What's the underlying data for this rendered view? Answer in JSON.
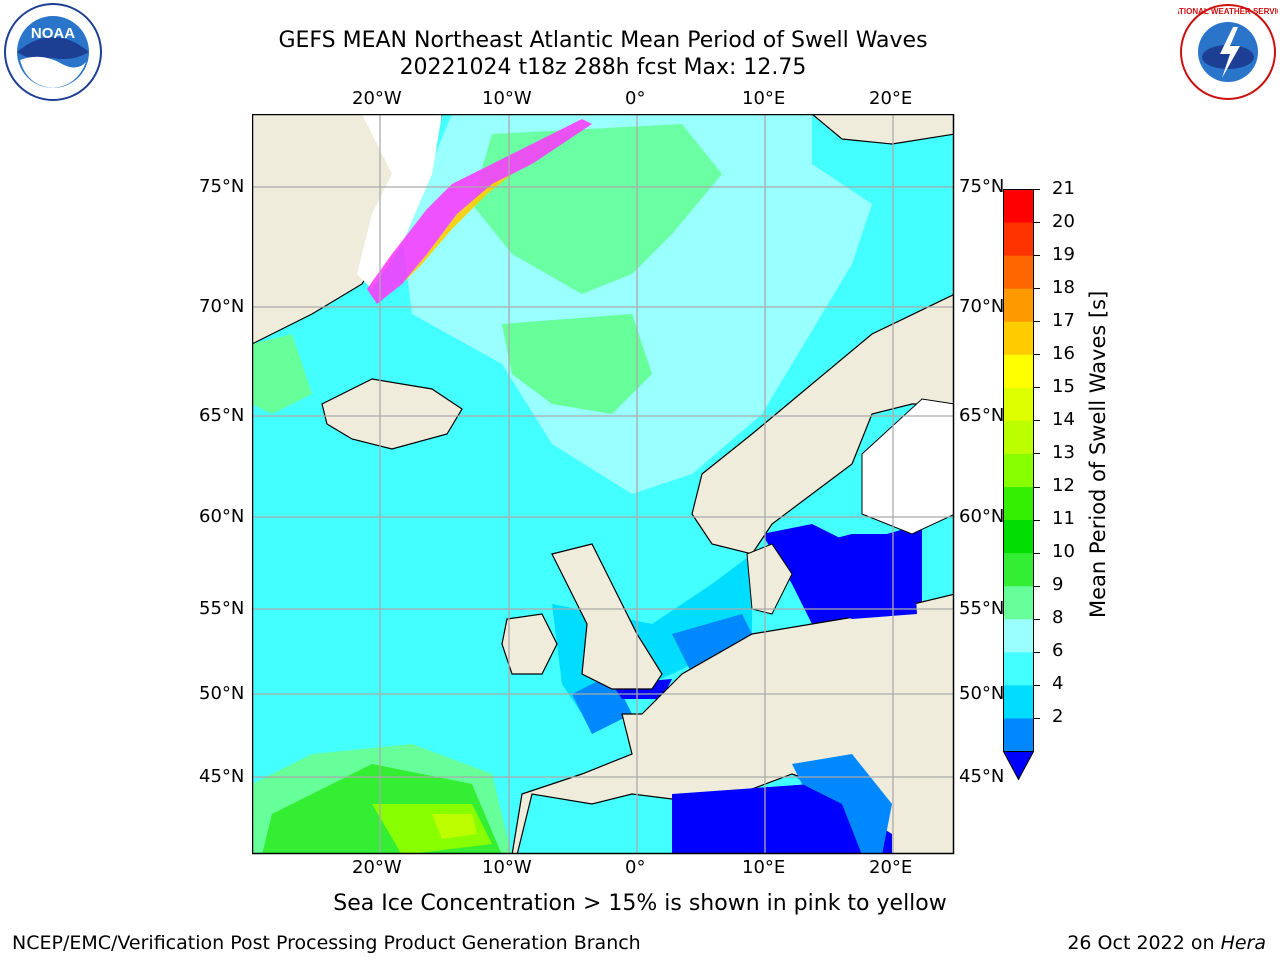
{
  "header": {
    "title_line1": "GEFS MEAN Northeast Atlantic Mean Period of Swell Waves",
    "title_line2": "20221024 t18z 288h fcst   Max: 12.75"
  },
  "logos": {
    "left": "NOAA",
    "right": "NATIONAL WEATHER SERVICE"
  },
  "map": {
    "lon_labels": [
      "20°W",
      "10°W",
      "0°",
      "10°E",
      "20°E"
    ],
    "lat_labels": [
      "75°N",
      "70°N",
      "65°N",
      "60°N",
      "55°N",
      "50°N",
      "45°N"
    ],
    "land_color": "#efecdc",
    "ice_note": "Sea Ice Concentration > 15% is shown in pink to yellow"
  },
  "colorbar": {
    "label": "Mean Period of Swell Waves [s]",
    "ticks": [
      "21",
      "20",
      "19",
      "18",
      "17",
      "16",
      "15",
      "14",
      "13",
      "12",
      "11",
      "10",
      "9",
      "8",
      "6",
      "4",
      "2"
    ],
    "colors": [
      "#ff0000",
      "#ff3300",
      "#ff6600",
      "#ff9900",
      "#ffcc00",
      "#ffff00",
      "#ddff00",
      "#bbff00",
      "#88ff00",
      "#33ee00",
      "#00dd00",
      "#33ee33",
      "#66ff99",
      "#99ffff",
      "#44ffff",
      "#00ddff",
      "#0088ff",
      "#0000ff"
    ]
  },
  "footer": {
    "left": "NCEP/EMC/Verification Post Processing Product Generation Branch",
    "right_date": "26 Oct 2022 on",
    "right_machine": "Hera"
  }
}
